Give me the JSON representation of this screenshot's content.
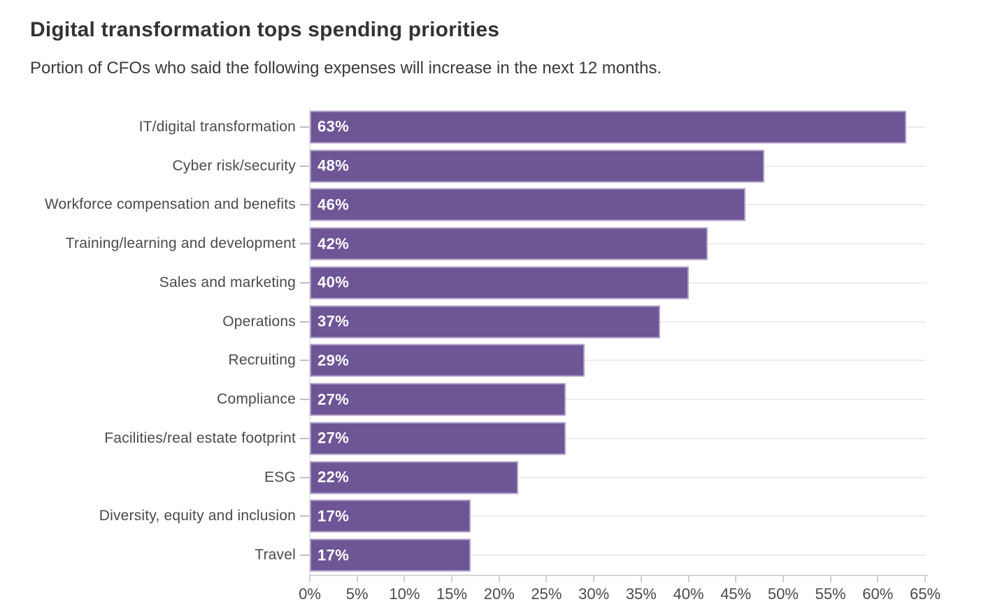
{
  "header": {
    "title": "Digital transformation tops spending priorities",
    "subtitle": "Portion of CFOs who said the following expenses will increase in the next 12 months."
  },
  "chart_data": {
    "type": "bar",
    "orientation": "horizontal",
    "title": "Digital transformation tops spending priorities",
    "subtitle": "Portion of CFOs who said the following expenses will increase in the next 12 months.",
    "categories": [
      "IT/digital transformation",
      "Cyber risk/security",
      "Workforce compensation and benefits",
      "Training/learning and development",
      "Sales and marketing",
      "Operations",
      "Recruiting",
      "Compliance",
      "Facilities/real estate footprint",
      "ESG",
      "Diversity, equity and inclusion",
      "Travel"
    ],
    "values": [
      63,
      48,
      46,
      42,
      40,
      37,
      29,
      27,
      27,
      22,
      17,
      17
    ],
    "bar_labels": [
      "63%",
      "48%",
      "46%",
      "42%",
      "40%",
      "37%",
      "29%",
      "27%",
      "27%",
      "22%",
      "17%",
      "17%"
    ],
    "xlabel": "",
    "ylabel": "",
    "xlim": [
      0,
      65
    ],
    "x_tick_step": 5,
    "x_ticks": [
      "0%",
      "5%",
      "10%",
      "15%",
      "20%",
      "25%",
      "30%",
      "35%",
      "40%",
      "45%",
      "50%",
      "55%",
      "60%",
      "65%"
    ],
    "grid": "row-center-horizontal-lines",
    "legend": "none",
    "colors": {
      "bar": "#6d5596",
      "bar_stroke": "rgba(255,255,255,0.45)",
      "bar_value_label": "#ffffff",
      "gridline": "#ededed",
      "axis_line": "#d6d6d6",
      "tick_label": "#4a4a4a",
      "category_label": "#4a4a4a",
      "title": "#333333",
      "background": "#ffffff"
    }
  }
}
